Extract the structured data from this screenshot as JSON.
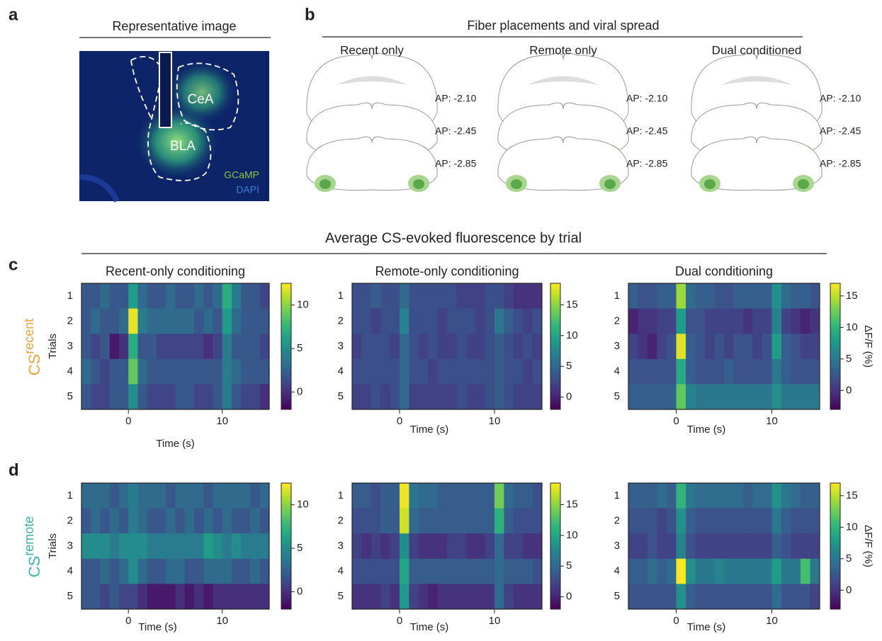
{
  "panel_letters": [
    "a",
    "b",
    "c",
    "d"
  ],
  "panel_a": {
    "title": "Representative image",
    "regions": [
      "CeA",
      "BLA"
    ],
    "stains": [
      "GCaMP",
      "DAPI"
    ]
  },
  "panel_b": {
    "title": "Fiber placements and viral spread",
    "groups": [
      "Recent only",
      "Remote only",
      "Dual conditioned"
    ],
    "ap_labels": [
      "AP: -2.10",
      "AP: -2.45",
      "AP: -2.85"
    ]
  },
  "heatmap_section": {
    "title": "Average CS-evoked fluorescence by trial",
    "rows": [
      {
        "cs": "CS",
        "sub": "recent",
        "color": "#f5a23a"
      },
      {
        "cs": "CS",
        "sub": "remote",
        "color": "#3ab5ad"
      }
    ]
  },
  "chart_data": [
    {
      "type": "heatmap",
      "title": "Recent-only conditioning",
      "xlabel": "Time (s)",
      "ylabel": "Trials",
      "categories": [
        "1",
        "2",
        "3",
        "4",
        "5"
      ],
      "xlim": [
        -5,
        15
      ],
      "xticks": [
        0,
        10
      ],
      "clim": [
        -2,
        12.5
      ],
      "cticks": [
        0,
        5,
        10
      ],
      "values": [
        [
          2,
          2,
          3,
          2,
          2,
          6,
          3,
          2,
          2,
          3,
          2,
          2,
          3,
          2,
          3,
          7,
          4,
          2,
          2,
          1
        ],
        [
          2,
          3,
          2,
          2,
          3,
          12,
          4,
          3,
          3,
          3,
          3,
          3,
          2,
          3,
          2,
          6,
          3,
          2,
          2,
          2
        ],
        [
          2,
          1,
          2,
          -1,
          0,
          7,
          2,
          2,
          1,
          1,
          1,
          1,
          1,
          0,
          1,
          4,
          2,
          2,
          2,
          1
        ],
        [
          3,
          2,
          1,
          2,
          2,
          9,
          3,
          2,
          2,
          2,
          2,
          2,
          2,
          2,
          2,
          4,
          3,
          2,
          2,
          2
        ],
        [
          2,
          1,
          1,
          2,
          2,
          5,
          2,
          1,
          1,
          1,
          2,
          2,
          1,
          1,
          2,
          4,
          2,
          1,
          1,
          0
        ]
      ]
    },
    {
      "type": "heatmap",
      "title": "Remote-only conditioning",
      "xlabel": "Time (s)",
      "categories": [
        "1",
        "2",
        "3",
        "4",
        "5"
      ],
      "xlim": [
        -5,
        15
      ],
      "xticks": [
        0,
        10
      ],
      "clim": [
        -2,
        18.5
      ],
      "cticks": [
        0,
        5,
        10,
        15
      ],
      "values": [
        [
          3,
          3,
          4,
          3,
          3,
          5,
          3,
          3,
          3,
          3,
          3,
          2,
          2,
          2,
          3,
          3,
          2,
          1,
          1,
          1
        ],
        [
          3,
          3,
          2,
          3,
          3,
          7,
          3,
          3,
          3,
          2,
          3,
          3,
          3,
          2,
          3,
          6,
          4,
          3,
          2,
          3
        ],
        [
          2,
          3,
          3,
          3,
          2,
          5,
          3,
          2,
          3,
          2,
          2,
          3,
          2,
          2,
          3,
          4,
          3,
          2,
          3,
          2
        ],
        [
          3,
          3,
          3,
          3,
          3,
          5,
          3,
          3,
          2,
          3,
          3,
          3,
          3,
          3,
          3,
          4,
          3,
          3,
          2,
          3
        ],
        [
          2,
          2,
          3,
          2,
          3,
          5,
          2,
          2,
          2,
          2,
          2,
          3,
          2,
          2,
          3,
          4,
          3,
          2,
          2,
          2
        ]
      ]
    },
    {
      "type": "heatmap",
      "title": "Dual conditioning",
      "xlabel": "Time (s)",
      "clabel": "ΔF/F (%)",
      "categories": [
        "1",
        "2",
        "3",
        "4",
        "5"
      ],
      "xlim": [
        -5,
        15
      ],
      "xticks": [
        0,
        10
      ],
      "clim": [
        -3,
        17
      ],
      "cticks": [
        0,
        5,
        10,
        15
      ],
      "values": [
        [
          3,
          2,
          2,
          3,
          3,
          14,
          4,
          3,
          3,
          2,
          2,
          3,
          3,
          3,
          3,
          7,
          4,
          3,
          3,
          2
        ],
        [
          -1,
          0,
          0,
          1,
          1,
          8,
          2,
          2,
          1,
          1,
          1,
          1,
          0,
          1,
          1,
          6,
          1,
          0,
          -1,
          0
        ],
        [
          1,
          0,
          -1,
          1,
          2,
          16,
          3,
          2,
          1,
          2,
          1,
          2,
          2,
          1,
          2,
          8,
          3,
          2,
          1,
          1
        ],
        [
          2,
          2,
          2,
          2,
          2,
          9,
          3,
          2,
          2,
          2,
          3,
          2,
          2,
          2,
          2,
          5,
          3,
          2,
          2,
          2
        ],
        [
          3,
          3,
          3,
          3,
          3,
          12,
          6,
          5,
          5,
          5,
          5,
          5,
          5,
          5,
          5,
          7,
          5,
          5,
          5,
          5
        ]
      ]
    },
    {
      "type": "heatmap",
      "xlabel": "Time (s)",
      "ylabel": "Trials",
      "categories": [
        "1",
        "2",
        "3",
        "4",
        "5"
      ],
      "xlim": [
        -5,
        15
      ],
      "xticks": [
        0,
        10
      ],
      "clim": [
        -2,
        12.5
      ],
      "cticks": [
        0,
        5,
        10
      ],
      "values": [
        [
          3,
          3,
          3,
          2,
          3,
          4,
          3,
          3,
          3,
          2,
          3,
          3,
          3,
          2,
          3,
          3,
          3,
          3,
          2,
          3
        ],
        [
          2,
          3,
          2,
          3,
          2,
          4,
          3,
          2,
          2,
          3,
          2,
          3,
          2,
          3,
          2,
          3,
          2,
          2,
          3,
          2
        ],
        [
          5,
          5,
          5,
          4,
          5,
          5,
          5,
          4,
          4,
          4,
          4,
          4,
          4,
          6,
          5,
          4,
          5,
          4,
          4,
          4
        ],
        [
          2,
          2,
          3,
          2,
          3,
          5,
          3,
          2,
          2,
          3,
          3,
          2,
          2,
          3,
          3,
          3,
          2,
          2,
          3,
          2
        ],
        [
          2,
          2,
          1,
          2,
          1,
          1,
          0,
          -1,
          -1,
          -1,
          0,
          -1,
          0,
          -1,
          0,
          0,
          0,
          0,
          0,
          0
        ]
      ]
    },
    {
      "type": "heatmap",
      "xlabel": "Time (s)",
      "categories": [
        "1",
        "2",
        "3",
        "4",
        "5"
      ],
      "xlim": [
        -5,
        15
      ],
      "xticks": [
        0,
        10
      ],
      "clim": [
        -2,
        18.5
      ],
      "cticks": [
        0,
        5,
        10,
        15
      ],
      "values": [
        [
          4,
          4,
          3,
          4,
          4,
          18,
          6,
          5,
          5,
          4,
          4,
          4,
          4,
          4,
          4,
          14,
          5,
          4,
          4,
          3
        ],
        [
          3,
          3,
          3,
          4,
          4,
          17,
          5,
          4,
          4,
          4,
          4,
          4,
          4,
          4,
          4,
          11,
          4,
          3,
          3,
          3
        ],
        [
          2,
          1,
          2,
          1,
          2,
          8,
          2,
          1,
          1,
          1,
          2,
          2,
          1,
          1,
          2,
          5,
          2,
          2,
          1,
          1
        ],
        [
          3,
          3,
          3,
          3,
          3,
          10,
          4,
          4,
          4,
          4,
          4,
          4,
          4,
          4,
          4,
          5,
          4,
          4,
          4,
          3
        ],
        [
          1,
          1,
          1,
          2,
          1,
          9,
          2,
          1,
          0,
          1,
          1,
          1,
          1,
          1,
          1,
          5,
          2,
          1,
          1,
          1
        ]
      ]
    },
    {
      "type": "heatmap",
      "xlabel": "Time (s)",
      "clabel": "ΔF/F (%)",
      "categories": [
        "1",
        "2",
        "3",
        "4",
        "5"
      ],
      "xlim": [
        -5,
        15
      ],
      "xticks": [
        0,
        10
      ],
      "clim": [
        -3,
        17
      ],
      "cticks": [
        0,
        5,
        10,
        15
      ],
      "values": [
        [
          3,
          3,
          3,
          4,
          3,
          10,
          5,
          4,
          4,
          4,
          4,
          4,
          3,
          4,
          4,
          7,
          5,
          4,
          3,
          3
        ],
        [
          2,
          2,
          2,
          1,
          2,
          7,
          3,
          2,
          2,
          2,
          2,
          2,
          2,
          2,
          2,
          5,
          3,
          2,
          2,
          2
        ],
        [
          1,
          1,
          2,
          1,
          1,
          6,
          2,
          1,
          1,
          1,
          1,
          1,
          1,
          1,
          1,
          3,
          2,
          1,
          1,
          1
        ],
        [
          3,
          3,
          4,
          3,
          4,
          17,
          7,
          5,
          5,
          6,
          5,
          5,
          5,
          5,
          5,
          8,
          5,
          5,
          11,
          5
        ],
        [
          2,
          2,
          2,
          2,
          2,
          7,
          3,
          2,
          2,
          2,
          2,
          2,
          2,
          2,
          2,
          4,
          2,
          2,
          2,
          1
        ]
      ]
    }
  ]
}
